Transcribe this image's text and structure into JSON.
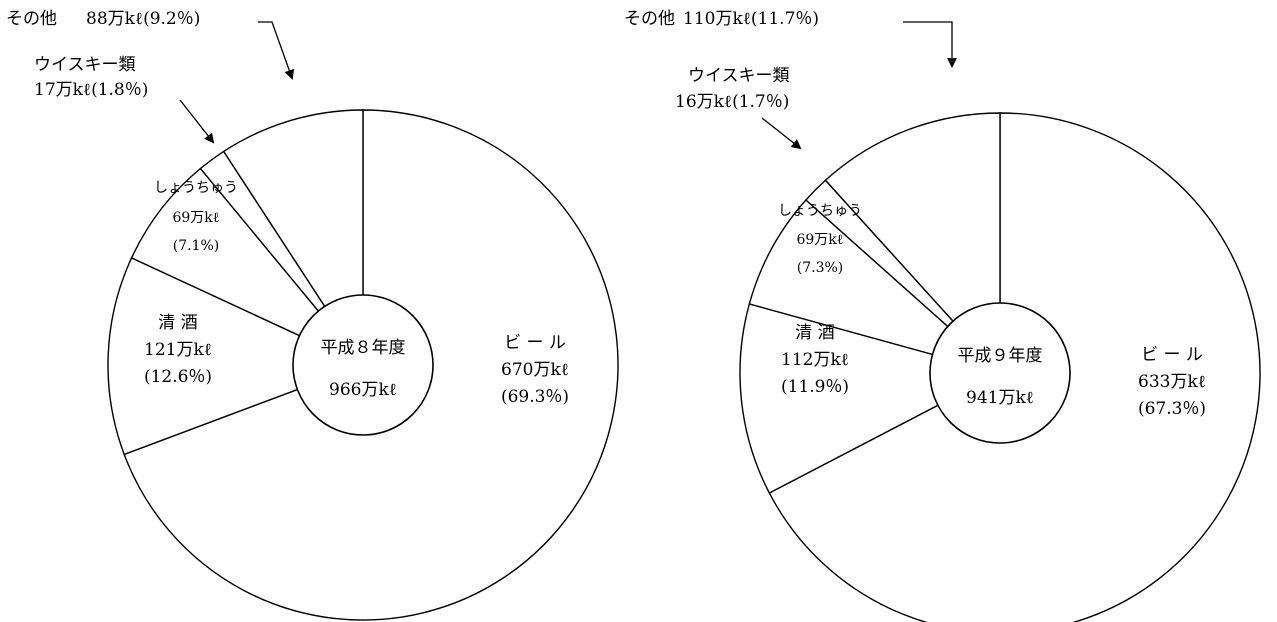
{
  "chart_data": [
    {
      "type": "pie",
      "center_label": "平成８年度",
      "total_label": "966万kℓ",
      "slices": [
        {
          "name": "ビ ー ル",
          "amount": "670万kℓ",
          "percent_text": "(69.3％)",
          "value": 69.3
        },
        {
          "name": "清 酒",
          "amount": "121万kℓ",
          "percent_text": "(12.6％)",
          "value": 12.6
        },
        {
          "name": "しょうちゅう",
          "amount": "69万kℓ",
          "percent_text": "(7.1%)",
          "value": 7.1
        },
        {
          "name": "ウイスキー類",
          "amount": "17万kℓ",
          "percent_text": "(1.8％)",
          "value": 1.8
        },
        {
          "name": "その他",
          "amount": "88万kℓ",
          "percent_text": "(9.2％)",
          "value": 9.2
        }
      ]
    },
    {
      "type": "pie",
      "center_label": "平成９年度",
      "total_label": "941万kℓ",
      "slices": [
        {
          "name": "ビ ー ル",
          "amount": "633万kℓ",
          "percent_text": "(67.3％)",
          "value": 67.3
        },
        {
          "name": "清 酒",
          "amount": "112万kℓ",
          "percent_text": "(11.9％)",
          "value": 11.9
        },
        {
          "name": "しょうちゅう",
          "amount": "69万kℓ",
          "percent_text": "(7.3%)",
          "value": 7.3
        },
        {
          "name": "ウイスキー類",
          "amount": "16万kℓ",
          "percent_text": "(1.7％)",
          "value": 1.7
        },
        {
          "name": "その他",
          "amount": "110万kℓ",
          "percent_text": "(11.7％)",
          "value": 11.7
        }
      ]
    }
  ]
}
